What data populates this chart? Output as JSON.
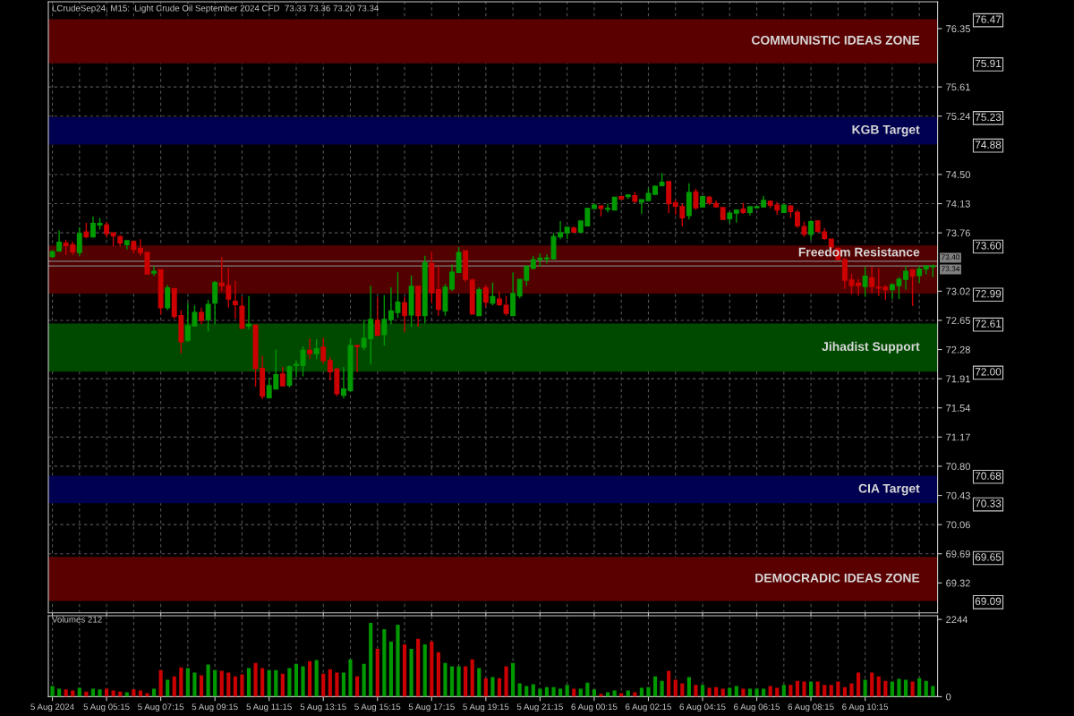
{
  "chart_data": [
    {
      "type": "candlestick",
      "title": "LCrudeSep24, M15:  Light Crude Oil September 2024 CFD  73.33 73.36 73.20 73.34",
      "categories": [
        null,
        null,
        null,
        null,
        null,
        null,
        null,
        null,
        null,
        null,
        null,
        null,
        null,
        null,
        null,
        null,
        null,
        null,
        null,
        null,
        null,
        null,
        null,
        null,
        null,
        null,
        null,
        null,
        null,
        null,
        null,
        null,
        null,
        null,
        null,
        null,
        null,
        null,
        null,
        null,
        null,
        null,
        null,
        null,
        null,
        null,
        null,
        null,
        null,
        null,
        null,
        null,
        null,
        null,
        null,
        null,
        null,
        null,
        null,
        null,
        null,
        null,
        null,
        null,
        null,
        null,
        null,
        null,
        null,
        null,
        null,
        null,
        null,
        null,
        null,
        null,
        null,
        null,
        null,
        null,
        null,
        null,
        null,
        null,
        null,
        null,
        null,
        null,
        null,
        null,
        null,
        null,
        null,
        null,
        null,
        null,
        null,
        null,
        null,
        null,
        null,
        null,
        null,
        null,
        null,
        null,
        null,
        null,
        null,
        null,
        null,
        null,
        null,
        null,
        null,
        null,
        null,
        null,
        null,
        null,
        null,
        null,
        null,
        null,
        null,
        null,
        null,
        null,
        null,
        null,
        null
      ],
      "ohlc": [
        [
          73.46,
          73.54,
          73.44,
          73.52
        ],
        [
          73.53,
          73.79,
          73.52,
          73.64
        ],
        [
          73.63,
          73.67,
          73.48,
          73.6
        ],
        [
          73.61,
          73.65,
          73.48,
          73.52
        ],
        [
          73.51,
          73.83,
          73.46,
          73.75
        ],
        [
          73.77,
          73.89,
          73.69,
          73.71
        ],
        [
          73.71,
          73.97,
          73.7,
          73.88
        ],
        [
          73.86,
          73.95,
          73.8,
          73.88
        ],
        [
          73.86,
          73.9,
          73.7,
          73.75
        ],
        [
          73.76,
          73.76,
          73.59,
          73.72
        ],
        [
          73.71,
          73.73,
          73.59,
          73.63
        ],
        [
          73.61,
          73.66,
          73.55,
          73.66
        ],
        [
          73.65,
          73.66,
          73.5,
          73.55
        ],
        [
          73.56,
          73.68,
          73.47,
          73.51
        ],
        [
          73.51,
          73.52,
          73.24,
          73.24
        ],
        [
          73.25,
          73.34,
          73.21,
          73.27
        ],
        [
          73.29,
          73.29,
          72.72,
          72.81
        ],
        [
          72.81,
          73.1,
          72.78,
          73.06
        ],
        [
          73.05,
          73.06,
          72.67,
          72.7
        ],
        [
          72.71,
          72.78,
          72.23,
          72.38
        ],
        [
          72.4,
          72.87,
          72.38,
          72.58
        ],
        [
          72.58,
          72.84,
          72.58,
          72.75
        ],
        [
          72.75,
          72.81,
          72.6,
          72.65
        ],
        [
          72.66,
          72.91,
          72.51,
          72.85
        ],
        [
          72.87,
          73.15,
          72.6,
          73.13
        ],
        [
          73.12,
          73.45,
          73.02,
          73.09
        ],
        [
          73.09,
          73.31,
          72.81,
          72.92
        ],
        [
          72.89,
          73.15,
          72.67,
          72.85
        ],
        [
          72.83,
          72.95,
          72.55,
          72.55
        ],
        [
          72.58,
          72.96,
          72.54,
          72.6
        ],
        [
          72.59,
          72.59,
          71.81,
          72.04
        ],
        [
          72.04,
          72.2,
          71.65,
          71.69
        ],
        [
          71.67,
          71.92,
          71.66,
          71.82
        ],
        [
          71.78,
          72.28,
          71.78,
          71.96
        ],
        [
          71.97,
          72.06,
          71.82,
          71.82
        ],
        [
          71.83,
          72.08,
          71.8,
          72.06
        ],
        [
          72.08,
          72.14,
          71.93,
          72.09
        ],
        [
          72.08,
          72.32,
          71.94,
          72.27
        ],
        [
          72.27,
          72.42,
          72.16,
          72.23
        ],
        [
          72.23,
          72.41,
          72.16,
          72.29
        ],
        [
          72.31,
          72.43,
          72.1,
          72.14
        ],
        [
          72.14,
          72.18,
          71.89,
          72.0
        ],
        [
          72.03,
          72.05,
          71.69,
          71.72
        ],
        [
          71.7,
          72.06,
          71.66,
          71.78
        ],
        [
          71.76,
          72.42,
          71.74,
          72.33
        ],
        [
          72.33,
          72.34,
          71.99,
          72.32
        ],
        [
          72.31,
          72.66,
          72.27,
          72.42
        ],
        [
          72.42,
          73.09,
          72.09,
          72.66
        ],
        [
          72.65,
          72.95,
          72.45,
          72.46
        ],
        [
          72.47,
          72.97,
          72.33,
          72.66
        ],
        [
          72.66,
          73.07,
          72.6,
          72.77
        ],
        [
          72.75,
          73.26,
          72.68,
          72.88
        ],
        [
          72.87,
          72.95,
          72.5,
          72.71
        ],
        [
          72.72,
          73.22,
          72.57,
          73.08
        ],
        [
          73.08,
          73.09,
          72.57,
          72.71
        ],
        [
          72.71,
          73.47,
          72.61,
          73.38
        ],
        [
          73.37,
          73.52,
          72.87,
          73.0
        ],
        [
          73.04,
          73.34,
          72.71,
          72.79
        ],
        [
          72.77,
          73.11,
          72.71,
          73.07
        ],
        [
          73.05,
          73.36,
          73.02,
          73.26
        ],
        [
          73.26,
          73.58,
          73.25,
          73.51
        ],
        [
          73.53,
          73.54,
          73.14,
          73.17
        ],
        [
          73.16,
          73.18,
          72.73,
          72.73
        ],
        [
          72.71,
          73.07,
          72.71,
          73.04
        ],
        [
          73.06,
          73.1,
          72.82,
          72.88
        ],
        [
          72.87,
          73.13,
          72.84,
          72.95
        ],
        [
          72.92,
          73.01,
          72.83,
          72.85
        ],
        [
          72.84,
          72.96,
          72.71,
          72.74
        ],
        [
          72.71,
          73.26,
          72.71,
          72.99
        ],
        [
          72.96,
          73.17,
          72.93,
          73.17
        ],
        [
          73.16,
          73.35,
          73.09,
          73.33
        ],
        [
          73.31,
          73.47,
          73.3,
          73.42
        ],
        [
          73.42,
          73.5,
          73.33,
          73.44
        ],
        [
          73.43,
          73.49,
          73.37,
          73.44
        ],
        [
          73.43,
          73.76,
          73.42,
          73.71
        ],
        [
          73.71,
          73.91,
          73.68,
          73.76
        ],
        [
          73.76,
          73.83,
          73.68,
          73.83
        ],
        [
          73.82,
          73.84,
          73.76,
          73.77
        ],
        [
          73.77,
          73.91,
          73.77,
          73.91
        ],
        [
          73.85,
          74.07,
          73.85,
          74.07
        ],
        [
          74.07,
          74.13,
          74.06,
          74.11
        ],
        [
          74.1,
          74.11,
          73.97,
          74.07
        ],
        [
          74.06,
          74.13,
          74.02,
          74.07
        ],
        [
          74.05,
          74.21,
          74.05,
          74.21
        ],
        [
          74.22,
          74.23,
          74.18,
          74.19
        ],
        [
          74.22,
          74.25,
          74.19,
          74.24
        ],
        [
          74.23,
          74.28,
          74.14,
          74.16
        ],
        [
          74.15,
          74.18,
          74.0,
          74.18
        ],
        [
          74.17,
          74.33,
          74.16,
          74.26
        ],
        [
          74.25,
          74.36,
          74.24,
          74.35
        ],
        [
          74.36,
          74.52,
          74.35,
          74.4
        ],
        [
          74.41,
          74.41,
          74.01,
          74.13
        ],
        [
          74.14,
          74.18,
          73.99,
          74.1
        ],
        [
          74.09,
          74.13,
          73.84,
          73.95
        ],
        [
          73.98,
          74.39,
          73.93,
          74.27
        ],
        [
          74.28,
          74.32,
          74.05,
          74.08
        ],
        [
          74.09,
          74.23,
          74.08,
          74.22
        ],
        [
          74.21,
          74.23,
          74.11,
          74.14
        ],
        [
          74.13,
          74.17,
          74.08,
          74.09
        ],
        [
          74.08,
          74.08,
          73.93,
          73.93
        ],
        [
          73.94,
          74.02,
          73.88,
          74.01
        ],
        [
          74.01,
          74.05,
          73.89,
          74.05
        ],
        [
          74.06,
          74.14,
          74.0,
          74.02
        ],
        [
          74.02,
          74.09,
          73.98,
          74.09
        ],
        [
          74.08,
          74.1,
          74.07,
          74.09
        ],
        [
          74.09,
          74.23,
          74.08,
          74.17
        ],
        [
          74.16,
          74.17,
          74.07,
          74.11
        ],
        [
          74.11,
          74.15,
          73.99,
          74.05
        ],
        [
          74.02,
          74.11,
          74.01,
          74.11
        ],
        [
          74.1,
          74.11,
          73.95,
          74.03
        ],
        [
          74.02,
          74.05,
          73.82,
          73.85
        ],
        [
          73.84,
          73.9,
          73.71,
          73.74
        ],
        [
          73.74,
          73.92,
          73.67,
          73.9
        ],
        [
          73.91,
          73.92,
          73.76,
          73.78
        ],
        [
          73.77,
          73.82,
          73.67,
          73.69
        ],
        [
          73.68,
          73.68,
          73.5,
          73.58
        ],
        [
          73.56,
          73.58,
          73.41,
          73.42
        ],
        [
          73.42,
          73.44,
          73.05,
          73.16
        ],
        [
          73.16,
          73.24,
          72.98,
          73.09
        ],
        [
          73.12,
          73.17,
          72.96,
          73.09
        ],
        [
          73.08,
          73.33,
          72.95,
          73.21
        ],
        [
          73.19,
          73.33,
          72.99,
          73.08
        ],
        [
          73.07,
          73.31,
          72.96,
          73.06
        ],
        [
          73.07,
          73.1,
          72.91,
          73.04
        ],
        [
          73.04,
          73.12,
          72.92,
          73.1
        ],
        [
          73.09,
          73.2,
          72.92,
          73.17
        ],
        [
          73.17,
          73.34,
          73.04,
          73.27
        ],
        [
          73.29,
          73.29,
          72.83,
          73.21
        ],
        [
          73.22,
          73.34,
          73.12,
          73.3
        ],
        [
          73.3,
          73.35,
          73.23,
          73.34
        ],
        [
          73.33,
          73.36,
          73.2,
          73.34
        ]
      ],
      "colors": [
        "#009900",
        "#009900",
        "#cc0000",
        "#cc0000",
        "#009900",
        "#cc0000",
        "#009900",
        "#009900",
        "#cc0000",
        "#cc0000",
        "#cc0000",
        "#009900",
        "#cc0000",
        "#cc0000",
        "#cc0000",
        "#009900",
        "#cc0000",
        "#009900",
        "#cc0000",
        "#cc0000",
        "#009900",
        "#009900",
        "#cc0000",
        "#009900",
        "#009900",
        "#cc0000",
        "#cc0000",
        "#cc0000",
        "#cc0000",
        "#009900",
        "#cc0000",
        "#cc0000",
        "#009900",
        "#009900",
        "#cc0000",
        "#009900",
        "#009900",
        "#009900",
        "#cc0000",
        "#009900",
        "#cc0000",
        "#cc0000",
        "#cc0000",
        "#009900",
        "#009900",
        "#cc0000",
        "#009900",
        "#009900",
        "#cc0000",
        "#009900",
        "#009900",
        "#009900",
        "#cc0000",
        "#009900",
        "#cc0000",
        "#009900",
        "#cc0000",
        "#cc0000",
        "#009900",
        "#009900",
        "#009900",
        "#cc0000",
        "#cc0000",
        "#009900",
        "#cc0000",
        "#009900",
        "#cc0000",
        "#cc0000",
        "#009900",
        "#009900",
        "#009900",
        "#009900",
        "#009900",
        "#009900",
        "#009900",
        "#009900",
        "#009900",
        "#cc0000",
        "#009900",
        "#009900",
        "#009900",
        "#cc0000",
        "#009900",
        "#009900",
        "#cc0000",
        "#009900",
        "#cc0000",
        "#009900",
        "#009900",
        "#009900",
        "#009900",
        "#cc0000",
        "#cc0000",
        "#cc0000",
        "#009900",
        "#cc0000",
        "#009900",
        "#cc0000",
        "#cc0000",
        "#cc0000",
        "#009900",
        "#009900",
        "#cc0000",
        "#009900",
        "#009900",
        "#009900",
        "#cc0000",
        "#cc0000",
        "#009900",
        "#cc0000",
        "#cc0000",
        "#cc0000",
        "#009900",
        "#cc0000",
        "#cc0000",
        "#cc0000",
        "#cc0000",
        "#cc0000",
        "#cc0000",
        "#cc0000",
        "#009900",
        "#cc0000",
        "#cc0000",
        "#cc0000",
        "#009900",
        "#009900",
        "#009900",
        "#cc0000",
        "#009900",
        "#009900",
        "#009900"
      ],
      "ylim": [
        68.94,
        76.69
      ],
      "yticks": [
        76.35,
        75.61,
        75.24,
        {
          "value": 74.5,
          "label": "74.50"
        },
        74.13,
        73.76,
        73.02,
        72.65,
        72.28,
        71.91,
        71.54,
        71.17,
        {
          "value": 70.8,
          "label": "70.80"
        },
        70.43,
        70.06,
        69.69,
        69.32
      ],
      "y2lim": [
        68.94,
        76.69
      ],
      "y2ticks": [
        76.47,
        75.91,
        75.23,
        74.88,
        {
          "value": 73.6,
          "label": "73.60"
        },
        72.99,
        72.61,
        {
          "value": 72,
          "label": "72.00"
        },
        70.68,
        70.33,
        69.65,
        69.09
      ],
      "grid": true,
      "tick_labels": "y",
      "bands": [
        {
          "axis": "y",
          "from": 75.91,
          "to": 76.47,
          "label": "COMMUNISTIC IDEAS ZONE",
          "color": "#5a0000"
        },
        {
          "axis": "y",
          "from": 74.88,
          "to": 75.23,
          "label": "KGB Target",
          "color": "#000050"
        },
        {
          "axis": "y",
          "from": 72.99,
          "to": 73.6,
          "label": "Freedom Resistance",
          "color": "#520000"
        },
        {
          "axis": "y",
          "from": 72.0,
          "to": 72.61,
          "label": "Jihadist Support",
          "color": "#004a00"
        },
        {
          "axis": "y",
          "from": 70.33,
          "to": 70.68,
          "label": "CIA Target",
          "color": "#000050"
        },
        {
          "axis": "y",
          "from": 69.09,
          "to": 69.65,
          "label": "DEMOCRADIC IDEAS ZONE",
          "color": "#5a0000"
        }
      ],
      "ref_lines": [
        {
          "axis": "y",
          "value": 73.4,
          "label": "73.40",
          "color": "#808080"
        },
        {
          "axis": "y",
          "value": 73.34,
          "label": "73.34",
          "color": "#808080"
        }
      ]
    },
    {
      "type": "bar",
      "title": "Volumes 212",
      "categories": [
        "5 Aug 2024",
        null,
        null,
        null,
        null,
        null,
        null,
        null,
        "5 Aug 05:15",
        null,
        null,
        null,
        null,
        null,
        null,
        null,
        "5 Aug 07:15",
        null,
        null,
        null,
        null,
        null,
        null,
        null,
        "5 Aug 09:15",
        null,
        null,
        null,
        null,
        null,
        null,
        null,
        "5 Aug 11:15",
        null,
        null,
        null,
        null,
        null,
        null,
        null,
        "5 Aug 13:15",
        null,
        null,
        null,
        null,
        null,
        null,
        null,
        "5 Aug 15:15",
        null,
        null,
        null,
        null,
        null,
        null,
        null,
        "5 Aug 17:15",
        null,
        null,
        null,
        null,
        null,
        null,
        null,
        "5 Aug 19:15",
        null,
        null,
        null,
        null,
        null,
        null,
        null,
        "5 Aug 21:15",
        null,
        null,
        null,
        null,
        null,
        null,
        null,
        "6 Aug 00:15",
        null,
        null,
        null,
        null,
        null,
        null,
        null,
        "6 Aug 02:15",
        null,
        null,
        null,
        null,
        null,
        null,
        null,
        "6 Aug 04:15",
        null,
        null,
        null,
        null,
        null,
        null,
        null,
        "6 Aug 06:15",
        null,
        null,
        null,
        null,
        null,
        null,
        null,
        "6 Aug 08:15",
        null,
        null,
        null,
        null,
        null,
        null,
        null,
        "6 Aug 10:15",
        null,
        null,
        null,
        null,
        null,
        null,
        null,
        null,
        null,
        null
      ],
      "values": [
        310,
        230,
        210,
        180,
        260,
        150,
        230,
        210,
        230,
        180,
        150,
        130,
        210,
        180,
        100,
        230,
        770,
        490,
        590,
        850,
        830,
        700,
        620,
        930,
        770,
        750,
        700,
        590,
        650,
        830,
        980,
        830,
        770,
        770,
        670,
        830,
        950,
        880,
        1030,
        1060,
        670,
        800,
        700,
        700,
        1080,
        590,
        950,
        2140,
        1390,
        1960,
        1600,
        2090,
        1520,
        1390,
        1680,
        1520,
        1600,
        1290,
        980,
        880,
        880,
        880,
        1080,
        830,
        540,
        570,
        540,
        880,
        980,
        390,
        310,
        360,
        230,
        280,
        280,
        230,
        340,
        230,
        230,
        410,
        210,
        80,
        130,
        180,
        100,
        180,
        130,
        260,
        280,
        590,
        460,
        750,
        490,
        390,
        570,
        340,
        340,
        260,
        280,
        230,
        260,
        310,
        230,
        230,
        230,
        230,
        310,
        260,
        340,
        340,
        460,
        440,
        440,
        440,
        340,
        340,
        440,
        280,
        390,
        700,
        490,
        700,
        590,
        460,
        440,
        520,
        490,
        440,
        540,
        460,
        310
      ],
      "colors": [
        "#009900",
        "#009900",
        "#cc0000",
        "#cc0000",
        "#009900",
        "#cc0000",
        "#009900",
        "#009900",
        "#cc0000",
        "#cc0000",
        "#cc0000",
        "#009900",
        "#cc0000",
        "#cc0000",
        "#cc0000",
        "#009900",
        "#cc0000",
        "#009900",
        "#cc0000",
        "#cc0000",
        "#009900",
        "#009900",
        "#cc0000",
        "#009900",
        "#009900",
        "#cc0000",
        "#cc0000",
        "#cc0000",
        "#cc0000",
        "#009900",
        "#cc0000",
        "#cc0000",
        "#009900",
        "#009900",
        "#cc0000",
        "#009900",
        "#009900",
        "#009900",
        "#cc0000",
        "#009900",
        "#cc0000",
        "#cc0000",
        "#cc0000",
        "#009900",
        "#009900",
        "#cc0000",
        "#009900",
        "#009900",
        "#cc0000",
        "#009900",
        "#009900",
        "#009900",
        "#cc0000",
        "#009900",
        "#cc0000",
        "#009900",
        "#cc0000",
        "#cc0000",
        "#009900",
        "#009900",
        "#009900",
        "#cc0000",
        "#cc0000",
        "#009900",
        "#cc0000",
        "#009900",
        "#cc0000",
        "#cc0000",
        "#009900",
        "#009900",
        "#009900",
        "#009900",
        "#009900",
        "#009900",
        "#009900",
        "#009900",
        "#009900",
        "#cc0000",
        "#009900",
        "#009900",
        "#009900",
        "#cc0000",
        "#009900",
        "#009900",
        "#cc0000",
        "#009900",
        "#cc0000",
        "#009900",
        "#009900",
        "#009900",
        "#009900",
        "#cc0000",
        "#cc0000",
        "#cc0000",
        "#009900",
        "#cc0000",
        "#009900",
        "#cc0000",
        "#cc0000",
        "#cc0000",
        "#009900",
        "#009900",
        "#cc0000",
        "#009900",
        "#009900",
        "#009900",
        "#cc0000",
        "#cc0000",
        "#009900",
        "#cc0000",
        "#cc0000",
        "#cc0000",
        "#009900",
        "#cc0000",
        "#cc0000",
        "#cc0000",
        "#cc0000",
        "#cc0000",
        "#cc0000",
        "#cc0000",
        "#009900",
        "#cc0000",
        "#cc0000",
        "#cc0000",
        "#009900",
        "#009900",
        "#009900",
        "#cc0000",
        "#009900",
        "#009900",
        "#009900"
      ],
      "ylim": [
        0,
        2350
      ],
      "yticks": [
        0,
        2244
      ],
      "grid": "x"
    }
  ]
}
